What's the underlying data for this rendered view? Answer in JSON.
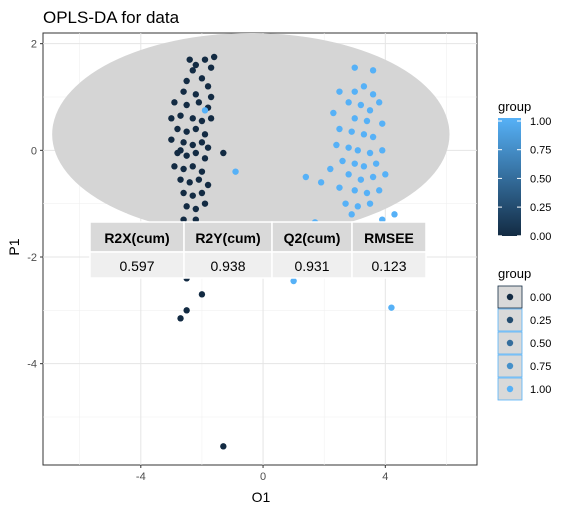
{
  "chart_data": {
    "type": "scatter",
    "title": "OPLS-DA for data",
    "xlabel": "O1",
    "ylabel": "P1",
    "xlim": [
      -7.2,
      7.0
    ],
    "ylim": [
      -5.9,
      2.2
    ],
    "xticks": [
      "-4",
      "0",
      "4"
    ],
    "yticks": [
      "2",
      "0",
      "-2",
      "-4"
    ],
    "grid": true,
    "ellipse": {
      "cx": -0.4,
      "cy": 0.3,
      "rx": 6.5,
      "ry": 1.9,
      "color": "#d5d5d5"
    },
    "color_scale": {
      "low": "#132b43",
      "high": "#56b1f7"
    },
    "legend_colorbar": {
      "title": "group",
      "labels": [
        "1.00",
        "0.75",
        "0.50",
        "0.25",
        "0.00"
      ],
      "position": "right"
    },
    "legend_points": {
      "title": "group",
      "labels": [
        "0.00",
        "0.25",
        "0.50",
        "0.75",
        "1.00"
      ],
      "position": "right"
    },
    "table": {
      "headers": [
        "R2X(cum)",
        "R2Y(cum)",
        "Q2(cum)",
        "RMSEE"
      ],
      "values": [
        "0.597",
        "0.938",
        "0.931",
        "0.123"
      ]
    },
    "series": [
      {
        "group": 0,
        "points": [
          [
            -2.4,
            1.7
          ],
          [
            -2.2,
            1.6
          ],
          [
            -1.9,
            1.7
          ],
          [
            -1.6,
            1.75
          ],
          [
            -2.3,
            1.5
          ],
          [
            -1.7,
            1.55
          ],
          [
            -2.5,
            1.3
          ],
          [
            -2.0,
            1.35
          ],
          [
            -1.8,
            1.2
          ],
          [
            -2.6,
            1.1
          ],
          [
            -2.2,
            1.05
          ],
          [
            -1.7,
            1.0
          ],
          [
            -2.9,
            0.9
          ],
          [
            -2.5,
            0.85
          ],
          [
            -2.1,
            0.9
          ],
          [
            -1.8,
            0.8
          ],
          [
            -3.0,
            0.6
          ],
          [
            -2.7,
            0.65
          ],
          [
            -2.3,
            0.6
          ],
          [
            -2.0,
            0.55
          ],
          [
            -1.7,
            0.6
          ],
          [
            -2.8,
            0.4
          ],
          [
            -2.5,
            0.35
          ],
          [
            -2.2,
            0.4
          ],
          [
            -1.9,
            0.3
          ],
          [
            -3.0,
            0.2
          ],
          [
            -2.6,
            0.15
          ],
          [
            -2.3,
            0.1
          ],
          [
            -2.0,
            0.15
          ],
          [
            -1.8,
            0.05
          ],
          [
            -2.8,
            -0.05
          ],
          [
            -2.5,
            -0.1
          ],
          [
            -2.2,
            -0.05
          ],
          [
            -1.9,
            -0.15
          ],
          [
            -2.9,
            -0.3
          ],
          [
            -2.6,
            -0.35
          ],
          [
            -2.3,
            -0.3
          ],
          [
            -2.0,
            -0.4
          ],
          [
            -2.7,
            -0.55
          ],
          [
            -2.4,
            -0.6
          ],
          [
            -2.1,
            -0.55
          ],
          [
            -1.8,
            -0.65
          ],
          [
            -2.6,
            -0.8
          ],
          [
            -2.3,
            -0.85
          ],
          [
            -2.0,
            -0.8
          ],
          [
            -2.5,
            -1.05
          ],
          [
            -2.2,
            -1.1
          ],
          [
            -1.9,
            -1.0
          ],
          [
            -2.6,
            -1.3
          ],
          [
            -2.2,
            -1.3
          ],
          [
            -2.4,
            -1.5
          ],
          [
            -2.1,
            -1.55
          ],
          [
            -1.3,
            -0.05
          ],
          [
            -2.7,
            0.0
          ],
          [
            -2.5,
            -2.4
          ],
          [
            -2.0,
            -2.7
          ],
          [
            -2.5,
            -3.0
          ],
          [
            -2.7,
            -3.15
          ],
          [
            -1.3,
            -5.55
          ]
        ]
      },
      {
        "group": 1,
        "points": [
          [
            3.0,
            1.55
          ],
          [
            3.6,
            1.5
          ],
          [
            3.3,
            1.2
          ],
          [
            3.0,
            1.1
          ],
          [
            3.6,
            1.05
          ],
          [
            3.8,
            0.9
          ],
          [
            2.5,
            1.1
          ],
          [
            2.8,
            0.9
          ],
          [
            3.2,
            0.85
          ],
          [
            3.5,
            0.75
          ],
          [
            2.3,
            0.7
          ],
          [
            3.0,
            0.6
          ],
          [
            3.4,
            0.55
          ],
          [
            3.9,
            0.5
          ],
          [
            2.5,
            0.4
          ],
          [
            2.9,
            0.35
          ],
          [
            3.3,
            0.3
          ],
          [
            3.6,
            0.25
          ],
          [
            2.4,
            0.1
          ],
          [
            2.8,
            0.05
          ],
          [
            3.1,
            0.0
          ],
          [
            3.5,
            -0.05
          ],
          [
            3.9,
            0.0
          ],
          [
            2.6,
            -0.2
          ],
          [
            3.0,
            -0.25
          ],
          [
            3.3,
            -0.3
          ],
          [
            3.7,
            -0.25
          ],
          [
            2.2,
            -0.35
          ],
          [
            2.8,
            -0.45
          ],
          [
            3.2,
            -0.55
          ],
          [
            3.6,
            -0.5
          ],
          [
            4.0,
            -0.45
          ],
          [
            2.5,
            -0.7
          ],
          [
            3.0,
            -0.75
          ],
          [
            3.4,
            -0.8
          ],
          [
            3.8,
            -0.75
          ],
          [
            2.7,
            -1.0
          ],
          [
            3.1,
            -1.05
          ],
          [
            3.5,
            -1.0
          ],
          [
            2.9,
            -1.2
          ],
          [
            1.9,
            -0.6
          ],
          [
            1.4,
            -0.5
          ],
          [
            3.9,
            -1.3
          ],
          [
            1.7,
            -1.35
          ],
          [
            -1.9,
            0.75
          ],
          [
            4.3,
            -1.2
          ],
          [
            -0.9,
            -0.4
          ],
          [
            1.0,
            -2.45
          ],
          [
            4.2,
            -2.95
          ]
        ]
      }
    ]
  }
}
